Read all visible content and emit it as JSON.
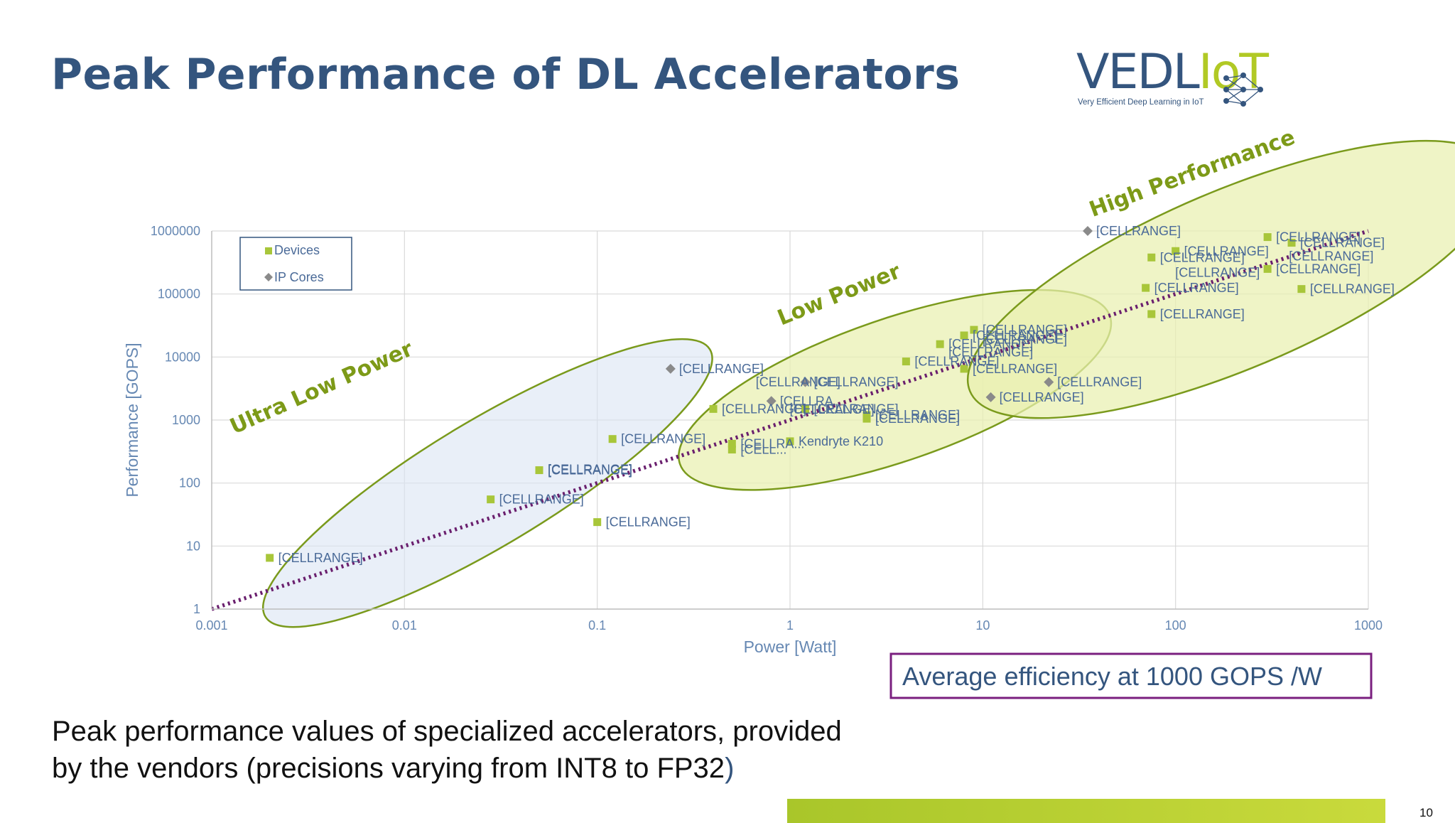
{
  "slide": {
    "title": "Peak Performance of DL Accelerators",
    "footnote_line1": "Peak performance values of specialized accelerators, provided",
    "footnote_line2": "by the vendors (precisions varying from INT8 to FP32",
    "footnote_paren": ")",
    "page_number": "10"
  },
  "logo": {
    "main": "VEDL",
    "accent": "IoT",
    "tagline": "Very Efficient Deep Learning in IoT",
    "accent_color": "#b1c925",
    "text_color": "#34557e"
  },
  "colors": {
    "device": "#a8c63a",
    "ipcore": "#8a8a8a",
    "label": "#4a6a98",
    "axis_text": "#6688b3",
    "grid": "#d9d9d9",
    "trend": "#6a1f6e",
    "ellipse_stroke": "#7a9a1c",
    "ellipse_low_fill": "#dbe4f3",
    "ellipse_green_fill": "#e9f0b0",
    "region_text": "#7d9a18",
    "box_border": "#7a1f7f"
  },
  "chart_data": {
    "type": "scatter",
    "x_scale": "log",
    "y_scale": "log",
    "xlim": [
      0.001,
      1000
    ],
    "ylim": [
      1,
      1000000
    ],
    "xlabel": "Power [Watt]",
    "ylabel": "Performance [GOPS]",
    "x_ticks": [
      "0.001",
      "0.01",
      "0.1",
      "1",
      "10",
      "100",
      "1000"
    ],
    "y_ticks": [
      "1",
      "10",
      "100",
      "1000",
      "10000",
      "100000",
      "1000000"
    ],
    "grid": true,
    "legend": {
      "placement": "top-left",
      "entries": [
        "Devices",
        "IP Cores"
      ]
    },
    "series": [
      {
        "name": "Devices",
        "marker": "square",
        "points": [
          {
            "x": 0.002,
            "y": 6.5,
            "label": "[CELLRANGE]"
          },
          {
            "x": 0.028,
            "y": 55,
            "label": "[CELLRANGE]"
          },
          {
            "x": 0.05,
            "y": 160,
            "label": "[CELLRANGE]"
          },
          {
            "x": 0.1,
            "y": 24,
            "label": "[CELLRANGE]"
          },
          {
            "x": 0.12,
            "y": 500,
            "label": "[CELLRANGE]"
          },
          {
            "x": 0.4,
            "y": 1500,
            "label": "[CELLRANGE]"
          },
          {
            "x": 0.5,
            "y": 420,
            "label": "[CELLRA..."
          },
          {
            "x": 0.5,
            "y": 340,
            "label": "[CELL..."
          },
          {
            "x": 1.0,
            "y": 460,
            "label": "Kendryte K210"
          },
          {
            "x": 1.2,
            "y": 1500,
            "label": "[CELLRANGE]"
          },
          {
            "x": 2.5,
            "y": 1200,
            "label": "[CELLRANGE]"
          },
          {
            "x": 2.5,
            "y": 1050,
            "label": "[CELLRANGE]"
          },
          {
            "x": 4,
            "y": 8500,
            "label": "[CELLRANGE]"
          },
          {
            "x": 6,
            "y": 16000,
            "label": "[CELLRANGE]"
          },
          {
            "x": 8,
            "y": 6500,
            "label": "[CELLRANGE]"
          },
          {
            "x": 8,
            "y": 22000,
            "label": "[CELLRANGE]"
          },
          {
            "x": 9,
            "y": 27000,
            "label": "[CELLRANGE]"
          },
          {
            "x": 70,
            "y": 125000,
            "label": "[CELLRANGE]"
          },
          {
            "x": 75,
            "y": 48000,
            "label": "[CELLRANGE]"
          },
          {
            "x": 75,
            "y": 380000,
            "label": "[CELLRANGE]"
          },
          {
            "x": 100,
            "y": 480000,
            "label": "[CELLRANGE]"
          },
          {
            "x": 300,
            "y": 800000,
            "label": "[CELLRANGE]"
          },
          {
            "x": 300,
            "y": 250000,
            "label": "[CELLRANGE]"
          },
          {
            "x": 400,
            "y": 650000,
            "label": "[CELLRANGE]"
          },
          {
            "x": 450,
            "y": 120000,
            "label": "[CELLRANGE]"
          }
        ]
      },
      {
        "name": "IP Cores",
        "marker": "diamond",
        "points": [
          {
            "x": 0.24,
            "y": 6500,
            "label": "[CELLRANGE]"
          },
          {
            "x": 0.8,
            "y": 2000,
            "label": "[CELLRA..."
          },
          {
            "x": 1.2,
            "y": 4000,
            "label": "[CELLRANGE]"
          },
          {
            "x": 11,
            "y": 2300,
            "label": "[CELLRANGE]"
          },
          {
            "x": 22,
            "y": 4000,
            "label": "[CELLRANGE]"
          },
          {
            "x": 35,
            "y": 1000000,
            "label": "[CELLRANGE]"
          }
        ]
      }
    ],
    "extra_labels": [
      {
        "x": 0.6,
        "y": 4000,
        "label": "[CELLRANGE]"
      },
      {
        "x": 0.05,
        "y": 165,
        "label": "[CELLRANGE]"
      },
      {
        "x": 0.9,
        "y": 1480,
        "label": "[CELLRANGE]"
      },
      {
        "x": 9,
        "y": 19000,
        "label": "[CELLRANGE]"
      },
      {
        "x": 6,
        "y": 12000,
        "label": "[CELLRANGE]"
      },
      {
        "x": 90,
        "y": 220000,
        "label": "[CELLRANGE]"
      },
      {
        "x": 350,
        "y": 400000,
        "label": "[CELLRANGE]"
      }
    ],
    "trendline": {
      "x": [
        0.001,
        1000
      ],
      "y": [
        1,
        1000000
      ]
    },
    "regions": [
      {
        "label": "Ultra Low Power",
        "cx": 0.027,
        "cy": 100,
        "rx": 365,
        "ry": 88,
        "rotation": -31,
        "fill": "low"
      },
      {
        "label": "Low Power",
        "cx": 3.5,
        "cy": 3000,
        "rx": 320,
        "ry": 100,
        "rotation": -19,
        "fill": "green"
      },
      {
        "label": "High Performance",
        "cx": 200,
        "cy": 170000,
        "rx": 403,
        "ry": 125,
        "rotation": -23,
        "fill": "green"
      }
    ],
    "annotation": "Average efficiency at 1000 GOPS /W"
  }
}
